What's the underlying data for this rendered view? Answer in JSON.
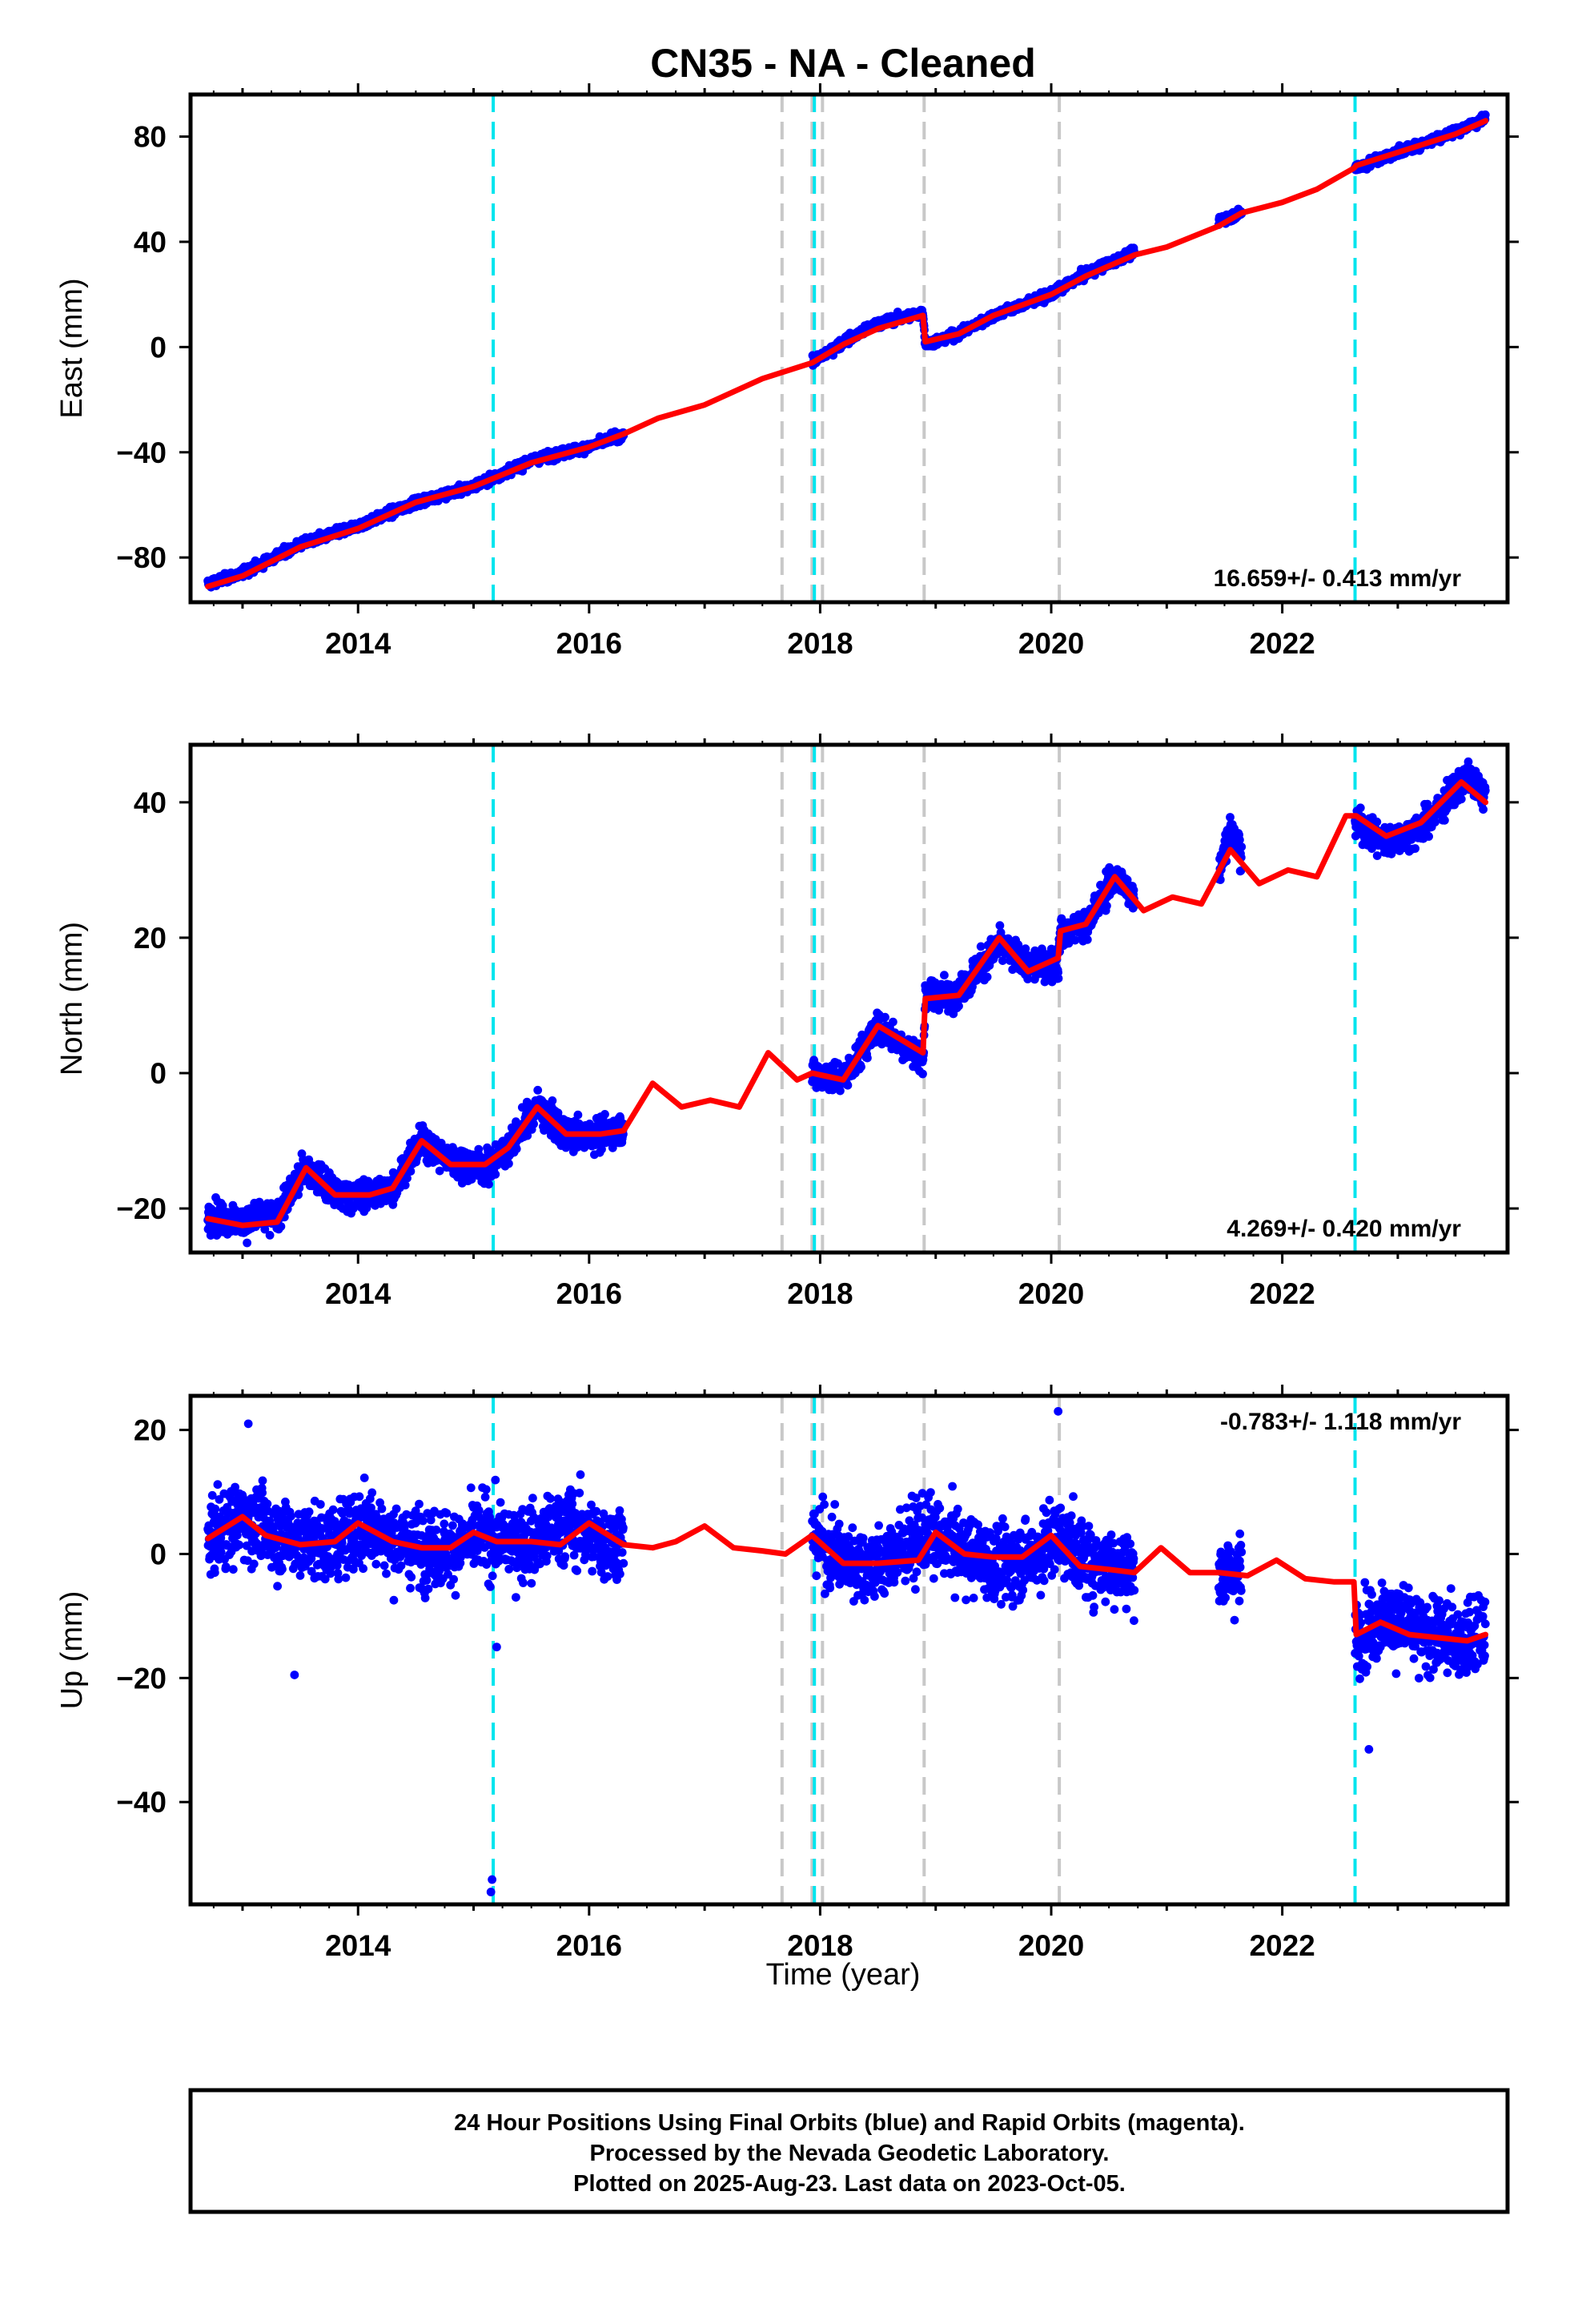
{
  "title": "CN35  - NA - Cleaned",
  "footer": {
    "line1": "24 Hour Positions Using Final Orbits (blue) and Rapid Orbits (magenta).",
    "line2": "Processed by the Nevada Geodetic Laboratory.",
    "line3": "Plotted on 2025-Aug-23. Last data on 2023-Oct-05."
  },
  "colors": {
    "data": "#0000ff",
    "model": "#ff0000",
    "equipment_change": "#00e5ee",
    "earthquake": "#c8c8c8"
  },
  "chart_data": [
    {
      "type": "scatter",
      "panel": "east",
      "ylabel": "East (mm)",
      "xlabel": "",
      "xlim": [
        2012.55,
        2023.95
      ],
      "ylim": [
        -97,
        96
      ],
      "x_ticks": [
        2014,
        2016,
        2018,
        2020,
        2022
      ],
      "y_ticks": [
        -80,
        -40,
        0,
        40,
        80
      ],
      "rate_label": "16.659+/- 0.413 mm/yr",
      "rate_placement": "bottom-right",
      "equipment_change_lines": [
        2015.17,
        2017.95,
        2022.63
      ],
      "earthquake_lines": [
        2017.67,
        2017.93,
        2018.02,
        2018.9,
        2020.07
      ],
      "gaps": [
        [
          2016.3,
          2017.93
        ],
        [
          2020.72,
          2021.45
        ],
        [
          2021.65,
          2022.63
        ]
      ],
      "series": [
        {
          "name": "Final Orbits (blue)",
          "kind": "daily positions",
          "x": [
            2012.7,
            2013.0,
            2013.5,
            2014.0,
            2014.5,
            2015.0,
            2015.5,
            2016.0,
            2016.3,
            2017.93,
            2018.2,
            2018.5,
            2018.89,
            2018.91,
            2019.2,
            2019.5,
            2020.0,
            2020.3,
            2020.72,
            2021.45,
            2021.65,
            2022.63,
            2023.0,
            2023.5,
            2023.76
          ],
          "y": [
            -90,
            -86,
            -75,
            -68,
            -59,
            -53,
            -43,
            -38,
            -33,
            -6,
            2,
            9,
            13,
            1,
            5,
            12,
            20,
            28,
            36,
            48,
            51,
            68,
            74,
            82,
            87
          ]
        },
        {
          "name": "Model fit",
          "x": [
            2012.7,
            2013.0,
            2013.5,
            2014.0,
            2014.5,
            2015.0,
            2015.5,
            2016.0,
            2016.3,
            2016.6,
            2017.0,
            2017.5,
            2017.93,
            2018.2,
            2018.5,
            2018.89,
            2018.91,
            2019.2,
            2019.5,
            2020.0,
            2020.3,
            2020.72,
            2021.0,
            2021.45,
            2021.65,
            2022.0,
            2022.3,
            2022.62,
            2022.64,
            2023.0,
            2023.5,
            2023.76
          ],
          "y": [
            -91,
            -87,
            -76,
            -69,
            -59,
            -53,
            -44,
            -38,
            -33,
            -27,
            -22,
            -12,
            -6,
            1,
            7,
            12,
            2,
            5,
            12,
            20,
            27,
            35,
            38,
            46,
            51,
            55,
            60,
            68,
            69,
            74,
            81,
            86
          ]
        }
      ]
    },
    {
      "type": "scatter",
      "panel": "north",
      "ylabel": "North (mm)",
      "xlabel": "",
      "xlim": [
        2012.55,
        2023.95
      ],
      "ylim": [
        -26.5,
        48.5
      ],
      "x_ticks": [
        2014,
        2016,
        2018,
        2020,
        2022
      ],
      "y_ticks": [
        -20,
        0,
        20,
        40
      ],
      "rate_label": "4.269+/- 0.420 mm/yr",
      "rate_placement": "bottom-right",
      "equipment_change_lines": [
        2015.17,
        2017.95,
        2022.63
      ],
      "earthquake_lines": [
        2017.67,
        2017.93,
        2018.02,
        2018.9,
        2020.07
      ],
      "gaps": [
        [
          2016.3,
          2017.93
        ],
        [
          2020.72,
          2021.45
        ],
        [
          2021.65,
          2022.63
        ]
      ],
      "series": [
        {
          "name": "Final Orbits (blue)",
          "kind": "daily positions",
          "x": [
            2012.7,
            2013.0,
            2013.3,
            2013.55,
            2013.8,
            2014.1,
            2014.3,
            2014.55,
            2014.8,
            2015.1,
            2015.3,
            2015.55,
            2015.8,
            2016.1,
            2016.3,
            2017.93,
            2018.2,
            2018.5,
            2018.89,
            2018.91,
            2019.2,
            2019.55,
            2019.8,
            2020.06,
            2020.08,
            2020.3,
            2020.55,
            2020.72,
            2021.45,
            2021.55,
            2021.65,
            2022.63,
            2022.9,
            2023.2,
            2023.6,
            2023.76
          ],
          "y": [
            -21,
            -22,
            -21,
            -14,
            -18,
            -18,
            -17,
            -10,
            -13,
            -14,
            -11,
            -5,
            -9,
            -9,
            -8,
            0,
            -1,
            7,
            2,
            11,
            12,
            19,
            16,
            16,
            21,
            22,
            29,
            26,
            30,
            36,
            32,
            37,
            34,
            36,
            44,
            41
          ]
        },
        {
          "name": "Model fit",
          "x": [
            2012.7,
            2013.0,
            2013.3,
            2013.55,
            2013.8,
            2014.1,
            2014.3,
            2014.55,
            2014.8,
            2015.1,
            2015.3,
            2015.55,
            2015.8,
            2016.1,
            2016.3,
            2016.55,
            2016.8,
            2017.05,
            2017.3,
            2017.55,
            2017.8,
            2017.93,
            2018.2,
            2018.5,
            2018.89,
            2018.91,
            2019.2,
            2019.55,
            2019.8,
            2020.06,
            2020.08,
            2020.3,
            2020.55,
            2020.8,
            2021.05,
            2021.3,
            2021.55,
            2021.8,
            2022.05,
            2022.3,
            2022.55,
            2022.62,
            2022.64,
            2022.9,
            2023.2,
            2023.55,
            2023.76
          ],
          "y": [
            -21.5,
            -22.5,
            -22,
            -14,
            -18,
            -18,
            -17,
            -10,
            -13.5,
            -13.5,
            -11,
            -5,
            -9,
            -9,
            -8.5,
            -1.5,
            -5,
            -4,
            -5,
            3,
            -1,
            0,
            -1,
            7,
            3,
            11,
            11.5,
            20,
            15,
            17,
            21,
            22,
            29,
            24,
            26,
            25,
            33,
            28,
            30,
            29,
            38,
            38,
            38,
            35,
            37,
            43,
            40
          ]
        }
      ]
    },
    {
      "type": "scatter",
      "panel": "up",
      "ylabel": "Up (mm)",
      "xlabel": "Time (year)",
      "xlim": [
        2012.55,
        2023.95
      ],
      "ylim": [
        -56.5,
        25.5
      ],
      "x_ticks": [
        2014,
        2016,
        2018,
        2020,
        2022
      ],
      "y_ticks": [
        -40,
        -20,
        0,
        20
      ],
      "rate_label": "-0.783+/- 1.118 mm/yr",
      "rate_placement": "top-right",
      "equipment_change_lines": [
        2015.17,
        2017.95,
        2022.63
      ],
      "earthquake_lines": [
        2017.67,
        2017.93,
        2018.02,
        2018.9,
        2020.07
      ],
      "gaps": [
        [
          2016.3,
          2017.93
        ],
        [
          2020.72,
          2021.45
        ],
        [
          2021.65,
          2022.63
        ]
      ],
      "outliers": [
        [
          2013.45,
          -19.5
        ],
        [
          2015.15,
          -54.5
        ],
        [
          2015.16,
          -52.5
        ],
        [
          2015.2,
          -15
        ],
        [
          2022.75,
          -31.5
        ],
        [
          2020.06,
          23
        ],
        [
          2013.05,
          21
        ]
      ],
      "series": [
        {
          "name": "Final Orbits (blue)",
          "kind": "daily positions",
          "x": [
            2012.7,
            2013.0,
            2013.3,
            2013.55,
            2013.8,
            2014.1,
            2014.3,
            2014.55,
            2014.8,
            2015.1,
            2015.3,
            2015.55,
            2015.8,
            2016.1,
            2016.3,
            2017.93,
            2018.2,
            2018.5,
            2018.89,
            2019.2,
            2019.55,
            2019.8,
            2020.06,
            2020.3,
            2020.55,
            2020.72,
            2021.45,
            2021.55,
            2021.65,
            2022.63,
            2022.9,
            2023.2,
            2023.55,
            2023.76
          ],
          "y": [
            2,
            6,
            3,
            2,
            2,
            5,
            2,
            1,
            1,
            3,
            2,
            2,
            5,
            2,
            2,
            3,
            -1,
            -2,
            3,
            1,
            -2,
            -1,
            3,
            -1,
            -2,
            -3,
            -3,
            -3,
            -3,
            -13,
            -10,
            -13,
            -14,
            -13
          ]
        },
        {
          "name": "Model fit",
          "x": [
            2012.7,
            2013.0,
            2013.2,
            2013.5,
            2013.8,
            2014.0,
            2014.3,
            2014.55,
            2014.8,
            2015.0,
            2015.2,
            2015.5,
            2015.75,
            2016.0,
            2016.3,
            2016.55,
            2016.75,
            2017.0,
            2017.25,
            2017.5,
            2017.7,
            2017.93,
            2018.2,
            2018.5,
            2018.85,
            2019.0,
            2019.25,
            2019.5,
            2019.75,
            2020.0,
            2020.25,
            2020.5,
            2020.72,
            2020.95,
            2021.2,
            2021.45,
            2021.7,
            2021.95,
            2022.2,
            2022.45,
            2022.62,
            2022.64,
            2022.85,
            2023.1,
            2023.35,
            2023.6,
            2023.76
          ],
          "y": [
            2.5,
            6,
            3,
            1.5,
            2,
            5,
            2,
            1,
            1,
            3.5,
            2,
            2,
            1.5,
            5,
            1.5,
            1,
            2,
            4.5,
            1,
            0.5,
            0,
            3,
            -1.5,
            -1.5,
            -1,
            3.5,
            0,
            -0.5,
            -0.5,
            3,
            -2,
            -2.5,
            -3,
            1,
            -3,
            -3,
            -3.5,
            -1,
            -4,
            -4.5,
            -4.5,
            -13,
            -11,
            -13,
            -13.5,
            -14,
            -13
          ]
        }
      ]
    }
  ]
}
